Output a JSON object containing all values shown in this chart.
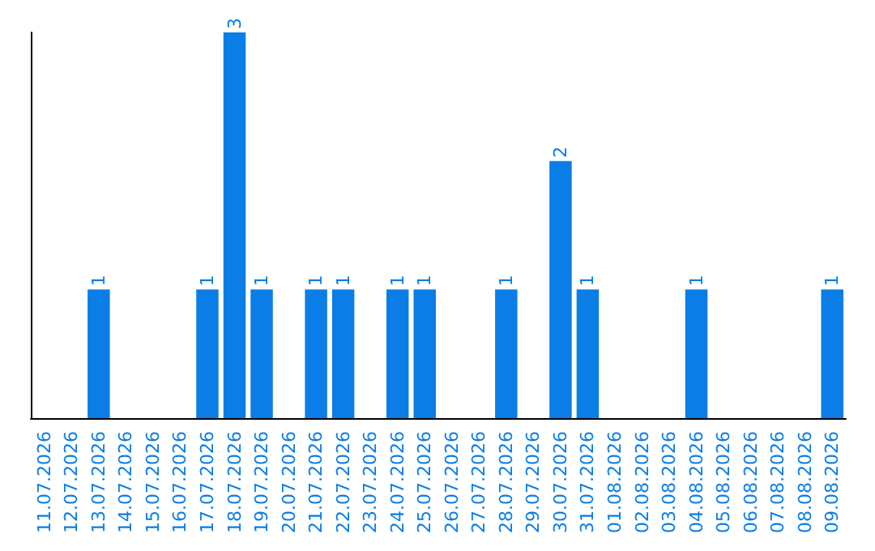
{
  "chart_data": {
    "type": "bar",
    "categories": [
      "11.07.2026",
      "12.07.2026",
      "13.07.2026",
      "14.07.2026",
      "15.07.2026",
      "16.07.2026",
      "17.07.2026",
      "18.07.2026",
      "19.07.2026",
      "20.07.2026",
      "21.07.2026",
      "22.07.2026",
      "23.07.2026",
      "24.07.2026",
      "25.07.2026",
      "26.07.2026",
      "27.07.2026",
      "28.07.2026",
      "29.07.2026",
      "30.07.2026",
      "31.07.2026",
      "01.08.2026",
      "02.08.2026",
      "03.08.2026",
      "04.08.2026",
      "05.08.2026",
      "06.08.2026",
      "07.08.2026",
      "08.08.2026",
      "09.08.2026"
    ],
    "values": [
      0,
      0,
      1,
      0,
      0,
      0,
      1,
      3,
      1,
      0,
      1,
      1,
      0,
      1,
      1,
      0,
      0,
      1,
      0,
      2,
      1,
      0,
      0,
      0,
      1,
      0,
      0,
      0,
      0,
      1
    ],
    "value_labels": [
      null,
      null,
      "1",
      null,
      null,
      null,
      "1",
      "3",
      "1",
      null,
      "1",
      "1",
      null,
      "1",
      "1",
      null,
      null,
      "1",
      null,
      "2",
      "1",
      null,
      null,
      null,
      "1",
      null,
      null,
      null,
      null,
      "1"
    ],
    "color": "#0a7ee6",
    "tick_labels": "x"
  }
}
